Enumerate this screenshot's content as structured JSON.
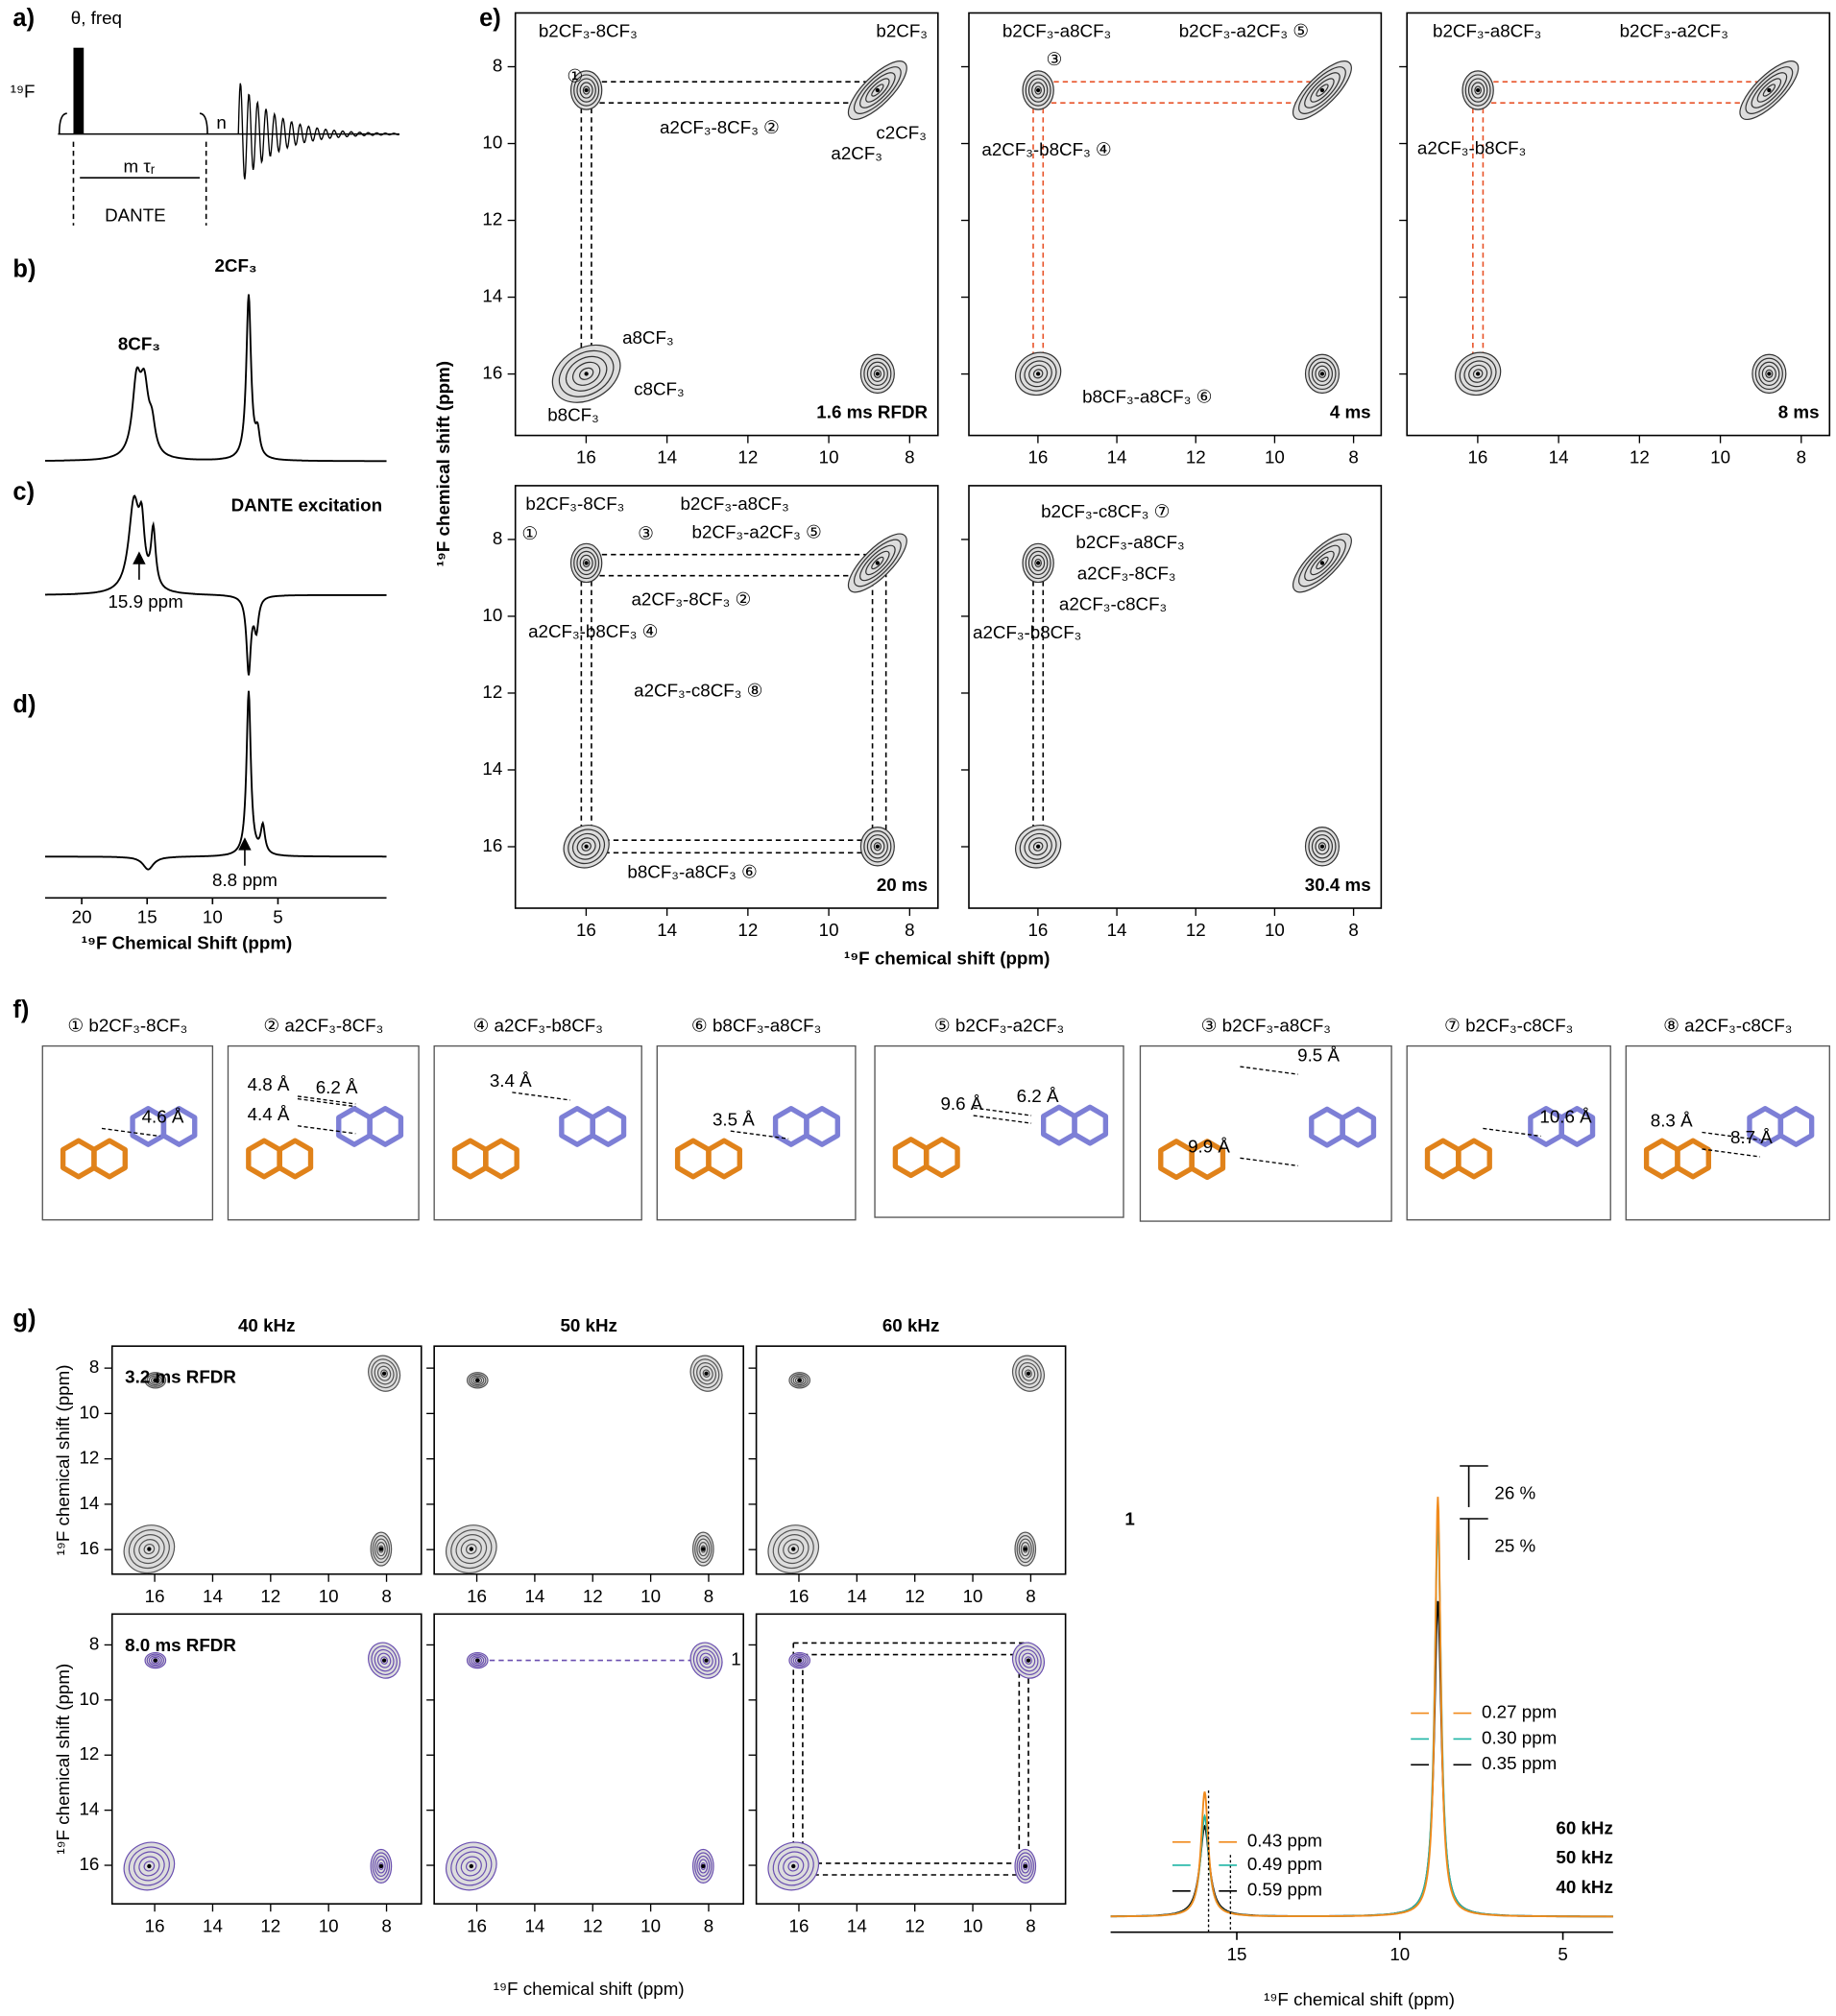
{
  "panels": {
    "a": {
      "label": "a)",
      "nucleus": "¹⁹F",
      "pulse": "θ, freq",
      "loop": "n",
      "delay": "m τᵣ",
      "block": "DANTE"
    },
    "b": {
      "label": "b)",
      "peaks": [
        "8CF₃",
        "2CF₃"
      ]
    },
    "c": {
      "label": "c)",
      "title": "DANTE excitation",
      "marker": "15.9 ppm"
    },
    "d": {
      "label": "d)",
      "marker": "8.8 ppm",
      "xlabel": "¹⁹F  Chemical Shift (ppm)",
      "xlim": [
        22.8,
        -3.3
      ],
      "xticks": [
        20,
        15,
        10,
        5
      ]
    },
    "e": {
      "label": "e)",
      "xlabel": "¹⁹F chemical shift (ppm)",
      "ylabel": "¹⁹F chemical shift (ppm)",
      "xlim": [
        17.75,
        7.3
      ],
      "ylim": [
        6.6,
        17.6
      ],
      "xticks": [
        16,
        14,
        12,
        10,
        8
      ],
      "yticks": [
        8,
        10,
        12,
        14,
        16
      ],
      "spectra": [
        {
          "mixing": "1.6 ms RFDR",
          "annotations": [
            {
              "text": "b2CF₃-8CF₃",
              "color": "#000000"
            },
            {
              "text": "①",
              "color": "#000000"
            },
            {
              "text": "b2CF₃",
              "color": "#000000"
            },
            {
              "text": "a2CF₃-8CF₃ ②",
              "color": "#000000"
            },
            {
              "text": "a2CF₃",
              "color": "#000000"
            },
            {
              "text": "c2CF₃",
              "color": "#000000"
            },
            {
              "text": "a8CF₃",
              "color": "#000000"
            },
            {
              "text": "c8CF₃",
              "color": "#000000"
            },
            {
              "text": "b8CF₃",
              "color": "#000000"
            }
          ]
        },
        {
          "mixing": "4 ms",
          "annotations": [
            {
              "text": "b2CF₃-a8CF₃",
              "color": "#e8542a"
            },
            {
              "text": "③",
              "color": "#000000"
            },
            {
              "text": "b2CF₃-a2CF₃ ⑤",
              "color": "#e8542a"
            },
            {
              "text": "a2CF₃-b8CF₃ ④",
              "color": "#e8542a"
            },
            {
              "text": "b8CF₃-a8CF₃ ⑥",
              "color": "#e8542a"
            }
          ]
        },
        {
          "mixing": "8 ms",
          "annotations": [
            {
              "text": "b2CF₃-a8CF₃",
              "color": "#e8542a"
            },
            {
              "text": "b2CF₃-a2CF₃",
              "color": "#e8542a"
            },
            {
              "text": "a2CF₃-b8CF₃",
              "color": "#e8542a"
            }
          ]
        },
        {
          "mixing": "20 ms",
          "annotations": [
            {
              "text": "b2CF₃-8CF₃",
              "color": "#000000"
            },
            {
              "text": "b2CF₃-a8CF₃",
              "color": "#e8542a"
            },
            {
              "text": "①",
              "color": "#000000"
            },
            {
              "text": "③",
              "color": "#000000"
            },
            {
              "text": "b2CF₃-a2CF₃ ⑤",
              "color": "#e8542a"
            },
            {
              "text": "a2CF₃-8CF₃ ②",
              "color": "#000000"
            },
            {
              "text": "a2CF₃-b8CF₃ ④",
              "color": "#e8542a"
            },
            {
              "text": "a2CF₃-c8CF₃ ⑧",
              "color": "#e8542a"
            },
            {
              "text": "b8CF₃-a8CF₃ ⑥",
              "color": "#e8542a"
            }
          ]
        },
        {
          "mixing": "30.4 ms",
          "annotations": [
            {
              "text": "b2CF₃-c8CF₃ ⑦",
              "color": "#e8542a"
            },
            {
              "text": "b2CF₃-a8CF₃",
              "color": "#e8542a"
            },
            {
              "text": "a2CF₃-8CF₃",
              "color": "#000000"
            },
            {
              "text": "a2CF₃-c8CF₃",
              "color": "#e8542a"
            },
            {
              "text": "a2CF₃-b8CF₃",
              "color": "#e8542a"
            }
          ]
        }
      ]
    },
    "f": {
      "label": "f)",
      "structures": [
        {
          "title": "① b2CF₃-8CF₃",
          "distances": [
            "4.6 Å"
          ]
        },
        {
          "title": "② a2CF₃-8CF₃",
          "distances": [
            "4.8 Å",
            "6.2 Å",
            "4.4 Å"
          ]
        },
        {
          "title": "④ a2CF₃-b8CF₃",
          "distances": [
            "3.4 Å"
          ]
        },
        {
          "title": "⑥ b8CF₃-a8CF₃",
          "distances": [
            "3.5 Å"
          ]
        },
        {
          "title": "⑤ b2CF₃-a2CF₃",
          "distances": [
            "9.6 Å",
            "6.2 Å"
          ]
        },
        {
          "title": "③ b2CF₃-a8CF₃",
          "distances": [
            "9.5 Å",
            "9.9 Å"
          ]
        },
        {
          "title": "⑦ b2CF₃-c8CF₃",
          "distances": [
            "10.6 Å"
          ]
        },
        {
          "title": "⑧ a2CF₃-c8CF₃",
          "distances": [
            "8.3 Å",
            "8.7 Å"
          ]
        }
      ]
    },
    "g": {
      "label": "g)",
      "xlabel": "¹⁹F chemical shift (ppm)",
      "ylabel": "¹⁹F chemical shift (ppm)",
      "columns": [
        "40 kHz",
        "50 kHz",
        "60 kHz"
      ],
      "rows": [
        {
          "mixing": "3.2 ms RFDR",
          "color": "#555555",
          "ylim": [
            7.03,
            17.08
          ]
        },
        {
          "mixing": "8.0 ms RFDR",
          "color": "#6a4fb0",
          "ylim": [
            6.88,
            17.4
          ]
        }
      ],
      "xlim": [
        17.47,
        6.8
      ],
      "xticks": [
        16,
        14,
        12,
        10,
        8
      ],
      "yticks": [
        8,
        10,
        12,
        14,
        16
      ],
      "peak_label": "1",
      "spectrum": {
        "label": "1",
        "xlim": [
          18.87,
          3.46
        ],
        "xticks": [
          15,
          10,
          5
        ],
        "xlabel": "¹⁹F chemical shift (ppm)",
        "gains": [
          "26 %",
          "25 %"
        ],
        "widths": [
          {
            "text": "0.27 ppm",
            "color": "#f08a1c"
          },
          {
            "text": "0.30 ppm",
            "color": "#1fb5a5"
          },
          {
            "text": "0.35 ppm",
            "color": "#000000"
          },
          {
            "text": "0.43 ppm",
            "color": "#f08a1c"
          },
          {
            "text": "0.49 ppm",
            "color": "#1fb5a5"
          },
          {
            "text": "0.59 ppm",
            "color": "#000000"
          }
        ],
        "legend": [
          {
            "name": "60 kHz",
            "color": "#f08a1c"
          },
          {
            "name": "50 kHz",
            "color": "#1fb5a5"
          },
          {
            "name": "40 kHz",
            "color": "#000000"
          }
        ]
      }
    }
  }
}
